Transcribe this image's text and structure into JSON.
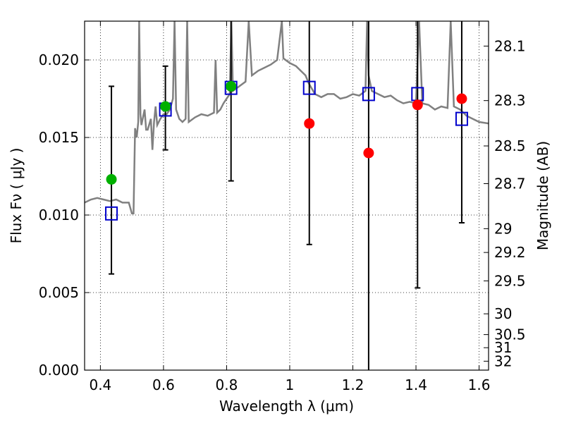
{
  "chart_data": {
    "type": "scatter",
    "xlabel": "Wavelength  λ (μm)",
    "ylabel": "Flux  Fν  ( μJy )",
    "ylabel_right": "Magnitude (AB)",
    "xlim": [
      0.35,
      1.63
    ],
    "ylim": [
      0.0,
      0.0225
    ],
    "grid": true,
    "x_ticks": [
      {
        "v": 0.4,
        "label": "0.4"
      },
      {
        "v": 0.6,
        "label": "0.6"
      },
      {
        "v": 0.8,
        "label": "0.8"
      },
      {
        "v": 1.0,
        "label": "1"
      },
      {
        "v": 1.2,
        "label": "1.2"
      },
      {
        "v": 1.4,
        "label": "1.4"
      },
      {
        "v": 1.6,
        "label": "1.6"
      }
    ],
    "y_ticks": [
      {
        "v": 0.0,
        "label": "0.000"
      },
      {
        "v": 0.005,
        "label": "0.005"
      },
      {
        "v": 0.01,
        "label": "0.010"
      },
      {
        "v": 0.015,
        "label": "0.015"
      },
      {
        "v": 0.02,
        "label": "0.020"
      }
    ],
    "mag_ticks": [
      {
        "mag": 28.1,
        "label": "28.1"
      },
      {
        "mag": 28.3,
        "label": "28.3"
      },
      {
        "mag": 28.5,
        "label": "28.5"
      },
      {
        "mag": 28.7,
        "label": "28.7"
      },
      {
        "mag": 29.0,
        "label": "29"
      },
      {
        "mag": 29.2,
        "label": "29.2"
      },
      {
        "mag": 29.5,
        "label": "29.5"
      },
      {
        "mag": 30.0,
        "label": "30"
      },
      {
        "mag": 30.5,
        "label": "30.5"
      },
      {
        "mag": 31.0,
        "label": "31"
      },
      {
        "mag": 32.0,
        "label": "32"
      }
    ],
    "model_spectrum": {
      "color": "#808080",
      "points": [
        [
          0.35,
          0.0108
        ],
        [
          0.37,
          0.011
        ],
        [
          0.39,
          0.0111
        ],
        [
          0.41,
          0.011
        ],
        [
          0.43,
          0.0109
        ],
        [
          0.45,
          0.011
        ],
        [
          0.47,
          0.0108
        ],
        [
          0.49,
          0.0108
        ],
        [
          0.5,
          0.0101
        ],
        [
          0.505,
          0.0101
        ],
        [
          0.51,
          0.0156
        ],
        [
          0.515,
          0.015
        ],
        [
          0.52,
          0.016
        ],
        [
          0.523,
          0.0225
        ],
        [
          0.527,
          0.0165
        ],
        [
          0.53,
          0.0158
        ],
        [
          0.54,
          0.0168
        ],
        [
          0.545,
          0.0155
        ],
        [
          0.55,
          0.0155
        ],
        [
          0.56,
          0.0162
        ],
        [
          0.565,
          0.0142
        ],
        [
          0.57,
          0.016
        ],
        [
          0.575,
          0.017
        ],
        [
          0.58,
          0.0158
        ],
        [
          0.59,
          0.0162
        ],
        [
          0.6,
          0.0165
        ],
        [
          0.61,
          0.0165
        ],
        [
          0.62,
          0.0168
        ],
        [
          0.63,
          0.0175
        ],
        [
          0.635,
          0.0225
        ],
        [
          0.64,
          0.0168
        ],
        [
          0.65,
          0.0162
        ],
        [
          0.66,
          0.016
        ],
        [
          0.67,
          0.0162
        ],
        [
          0.675,
          0.0225
        ],
        [
          0.68,
          0.016
        ],
        [
          0.7,
          0.0163
        ],
        [
          0.72,
          0.0165
        ],
        [
          0.74,
          0.0164
        ],
        [
          0.76,
          0.0166
        ],
        [
          0.765,
          0.02
        ],
        [
          0.77,
          0.0166
        ],
        [
          0.78,
          0.0168
        ],
        [
          0.79,
          0.0172
        ],
        [
          0.8,
          0.0175
        ],
        [
          0.81,
          0.0178
        ],
        [
          0.815,
          0.0225
        ],
        [
          0.82,
          0.018
        ],
        [
          0.84,
          0.0183
        ],
        [
          0.86,
          0.0186
        ],
        [
          0.87,
          0.0225
        ],
        [
          0.88,
          0.019
        ],
        [
          0.9,
          0.0193
        ],
        [
          0.92,
          0.0195
        ],
        [
          0.94,
          0.0197
        ],
        [
          0.96,
          0.02
        ],
        [
          0.975,
          0.0225
        ],
        [
          0.98,
          0.0201
        ],
        [
          1.0,
          0.0198
        ],
        [
          1.02,
          0.0196
        ],
        [
          1.04,
          0.0192
        ],
        [
          1.05,
          0.019
        ],
        [
          1.06,
          0.0185
        ],
        [
          1.08,
          0.0178
        ],
        [
          1.1,
          0.0176
        ],
        [
          1.12,
          0.0178
        ],
        [
          1.14,
          0.0178
        ],
        [
          1.16,
          0.0175
        ],
        [
          1.18,
          0.0176
        ],
        [
          1.2,
          0.0178
        ],
        [
          1.22,
          0.0177
        ],
        [
          1.24,
          0.018
        ],
        [
          1.245,
          0.0225
        ],
        [
          1.25,
          0.019
        ],
        [
          1.26,
          0.018
        ],
        [
          1.28,
          0.0178
        ],
        [
          1.3,
          0.0176
        ],
        [
          1.32,
          0.0177
        ],
        [
          1.34,
          0.0174
        ],
        [
          1.36,
          0.0172
        ],
        [
          1.38,
          0.0173
        ],
        [
          1.4,
          0.0172
        ],
        [
          1.41,
          0.0225
        ],
        [
          1.42,
          0.0172
        ],
        [
          1.44,
          0.0171
        ],
        [
          1.46,
          0.0168
        ],
        [
          1.48,
          0.017
        ],
        [
          1.5,
          0.0169
        ],
        [
          1.51,
          0.0225
        ],
        [
          1.52,
          0.017
        ],
        [
          1.54,
          0.0168
        ],
        [
          1.56,
          0.0164
        ],
        [
          1.58,
          0.0162
        ],
        [
          1.6,
          0.016
        ],
        [
          1.63,
          0.0159
        ]
      ]
    },
    "observed_points": [
      {
        "x": 0.435,
        "y": 0.0123,
        "color": "#00b000"
      },
      {
        "x": 0.606,
        "y": 0.017,
        "color": "#00b000"
      },
      {
        "x": 0.814,
        "y": 0.0183,
        "color": "#00b000"
      },
      {
        "x": 1.062,
        "y": 0.0159,
        "color": "#ff0000"
      },
      {
        "x": 1.25,
        "y": 0.014,
        "color": "#ff0000"
      },
      {
        "x": 1.405,
        "y": 0.0171,
        "color": "#ff0000"
      },
      {
        "x": 1.545,
        "y": 0.0175,
        "color": "#ff0000"
      }
    ],
    "model_points": {
      "color": "#0000cc",
      "values": [
        {
          "x": 0.435,
          "y": 0.0101
        },
        {
          "x": 0.606,
          "y": 0.0168
        },
        {
          "x": 0.814,
          "y": 0.0182
        },
        {
          "x": 1.062,
          "y": 0.0182
        },
        {
          "x": 1.25,
          "y": 0.0178
        },
        {
          "x": 1.405,
          "y": 0.0178
        },
        {
          "x": 1.545,
          "y": 0.0162
        }
      ]
    },
    "error_bars": [
      {
        "x": 0.435,
        "low": 0.0062,
        "high": 0.0183
      },
      {
        "x": 0.606,
        "low": 0.0142,
        "high": 0.0196
      },
      {
        "x": 0.814,
        "low": 0.0122,
        "high": 0.0225
      },
      {
        "x": 1.062,
        "low": 0.0081,
        "high": 0.0225
      },
      {
        "x": 1.25,
        "low": 0.0,
        "high": 0.0225
      },
      {
        "x": 1.405,
        "low": 0.0053,
        "high": 0.0225
      },
      {
        "x": 1.545,
        "low": 0.0095,
        "high": 0.0225
      }
    ]
  }
}
